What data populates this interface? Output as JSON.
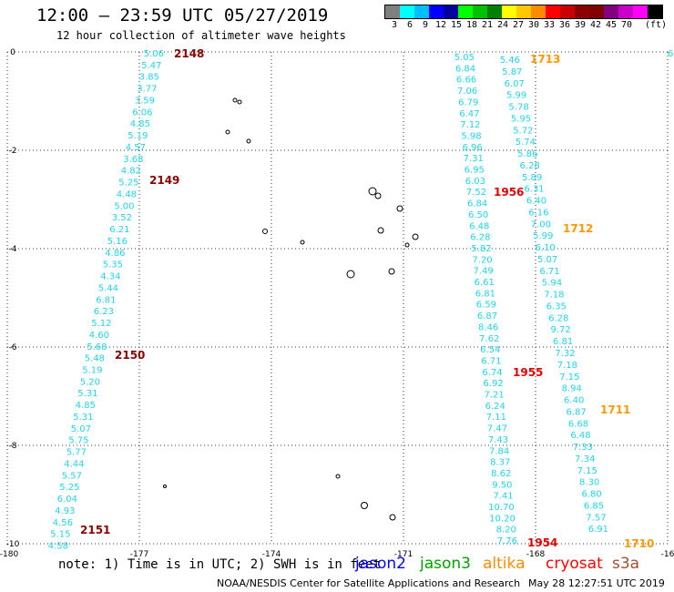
{
  "title": "12:00 – 23:59 UTC 05/27/2019",
  "subtitle": "12 hour collection of altimeter wave heights",
  "legend": {
    "unit": "(ft)",
    "colors": [
      "#7f7f7f",
      "#00ffff",
      "#00bfff",
      "#0000ff",
      "#0000a0",
      "#00ff00",
      "#00c000",
      "#008000",
      "#ffff00",
      "#ffc800",
      "#ff8c00",
      "#ff0000",
      "#c80000",
      "#8c0000",
      "#800000",
      "#800080",
      "#c800c8",
      "#ff00ff",
      "#000000"
    ],
    "labels": [
      "3",
      "6",
      "9",
      "12",
      "15",
      "18",
      "21",
      "24",
      "27",
      "30",
      "33",
      "36",
      "39",
      "42",
      "45",
      "70"
    ]
  },
  "map": {
    "lon_ticks": [
      "-180",
      "-177",
      "-174",
      "-171",
      "-168",
      "-16"
    ],
    "lat_ticks": [
      "0",
      "-2",
      "-4",
      "-6",
      "-8",
      "-10"
    ]
  },
  "tracks": {
    "jason2_west": {
      "color": "#22d3e6",
      "values": [
        "5.06",
        "5.47",
        "3.85",
        "3.77",
        "3.59",
        "6.06",
        "4.85",
        "5.19",
        "4.57",
        "3.68",
        "4.82",
        "5.25",
        "4.48",
        "5.00",
        "3.52",
        "6.21",
        "5.16",
        "4.86",
        "5.35",
        "4.34",
        "5.44",
        "6.81",
        "6.23",
        "5.12",
        "4.60",
        "5.68",
        "5.48",
        "5.19",
        "5.20",
        "5.31",
        "4.85",
        "5.31",
        "5.07",
        "5.75",
        "5.77",
        "4.44",
        "5.57",
        "5.25",
        "6.04",
        "4.93",
        "4.56",
        "5.15",
        "4.58"
      ]
    },
    "jason2_east_a": {
      "color": "#22d3e6",
      "values": [
        "5.05",
        "6.84",
        "6.66",
        "7.06",
        "6.79",
        "6.47",
        "7.12",
        "5.98",
        "6.96",
        "7.31",
        "6.95",
        "6.03",
        "7.52",
        "6.84",
        "6.50",
        "6.48",
        "6.28",
        "5.82",
        "7.20",
        "7.49",
        "6.61",
        "6.81",
        "6.59",
        "6.87",
        "8.46",
        "7.62",
        "6.54",
        "6.71",
        "6.74",
        "6.92",
        "7.21",
        "6.24",
        "7.11",
        "7.47",
        "7.43",
        "7.84",
        "8.37",
        "8.62",
        "9.50",
        "7.41",
        "10.70",
        "10.20",
        "8.20",
        "7.76"
      ]
    },
    "jason2_east_b": {
      "color": "#22d3e6",
      "values": [
        "5.46",
        "5.87",
        "6.07",
        "5.99",
        "5.78",
        "5.95",
        "5.72",
        "5.74",
        "5.86",
        "6.28",
        "5.89",
        "6.31",
        "6.40",
        "6.16",
        "7.00",
        "5.99",
        "6.10",
        "5.07",
        "6.71",
        "5.94",
        "7.18",
        "6.35",
        "6.28",
        "9.72",
        "6.81",
        "7.32",
        "7.18",
        "7.15",
        "8.94",
        "6.40",
        "6.87",
        "6.68",
        "6.48",
        "7.33",
        "7.34",
        "7.15",
        "8.30",
        "6.80",
        "6.85",
        "7.57",
        "6.91"
      ]
    },
    "edge_value": "6"
  },
  "time_labels": {
    "jason2_west": [
      "2148",
      "2149",
      "2150",
      "2151"
    ],
    "jason2_east": [
      "1956",
      "1955",
      "1954"
    ],
    "altika": [
      "1713",
      "1712",
      "1711",
      "1710"
    ]
  },
  "satellites": [
    {
      "name": "jason2",
      "color": "#0000ff"
    },
    {
      "name": "jason3",
      "color": "#00a000"
    },
    {
      "name": "altika",
      "color": "#ff8c00"
    },
    {
      "name": "cryosat",
      "color": "#ff0000"
    },
    {
      "name": "s3a",
      "color": "#a0522d"
    }
  ],
  "note": "note:  1) Time is in UTC;  2) SWH is in feet",
  "footer": {
    "credit": "NOAA/NESDIS Center for Satellite Applications and Research",
    "timestamp": "May 28 12:27:51 UTC 2019"
  }
}
